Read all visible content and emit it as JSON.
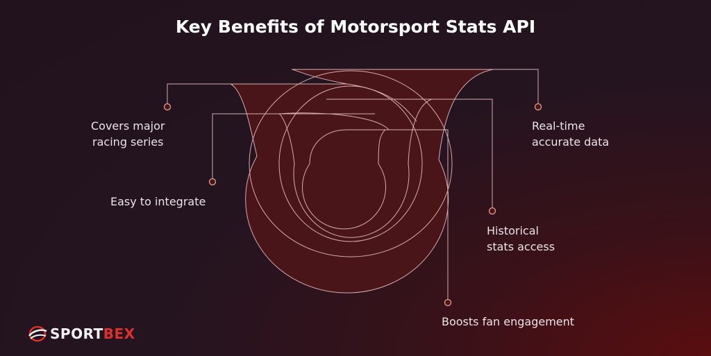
{
  "title": "Key Benefits of Motorsport Stats API",
  "benefits": [
    {
      "label_lines": [
        "Covers major",
        "racing series"
      ]
    },
    {
      "label_lines": [
        "Real-time",
        "accurate data"
      ]
    },
    {
      "label_lines": [
        "Easy to integrate"
      ]
    },
    {
      "label_lines": [
        "Historical",
        "stats access"
      ]
    },
    {
      "label_lines": [
        "Boosts fan engagement"
      ]
    }
  ],
  "logo": {
    "part1": "SPORT",
    "part2": "BEX"
  },
  "colors": {
    "accent": "#e0302c",
    "shape_fill": "#4a1518",
    "line": "#d8b4b4"
  }
}
